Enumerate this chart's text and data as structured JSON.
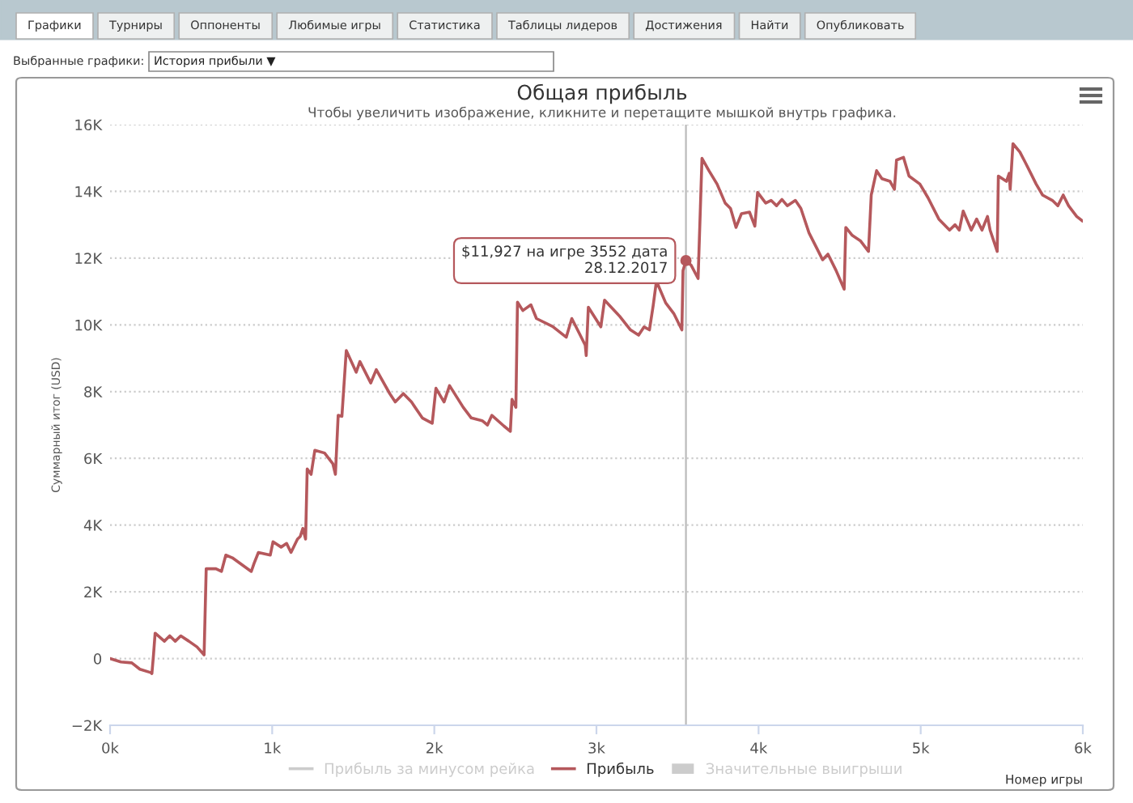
{
  "chart_data": {
    "type": "line",
    "title": "Общая прибыль",
    "subtitle": "Чтобы увеличить изображение, кликните и перетащите мышкой внутрь графика.",
    "xlabel": "Номер игры",
    "ylabel": "Суммарный итог (USD)",
    "xlim": [
      0,
      6000
    ],
    "xticks": [
      {
        "value": 0,
        "label": "0k"
      },
      {
        "value": 1000,
        "label": "1k"
      },
      {
        "value": 2000,
        "label": "2k"
      },
      {
        "value": 3000,
        "label": "3k"
      },
      {
        "value": 4000,
        "label": "4k"
      },
      {
        "value": 5000,
        "label": "5k"
      },
      {
        "value": 6000,
        "label": "6k"
      }
    ],
    "ylim": [
      -2000,
      16000
    ],
    "yticks": [
      {
        "value": -2000,
        "label": "−2K"
      },
      {
        "value": 0,
        "label": "0"
      },
      {
        "value": 2000,
        "label": "2K"
      },
      {
        "value": 4000,
        "label": "4K"
      },
      {
        "value": 6000,
        "label": "6K"
      },
      {
        "value": 8000,
        "label": "8K"
      },
      {
        "value": 10000,
        "label": "10K"
      },
      {
        "value": 12000,
        "label": "12K"
      },
      {
        "value": 14000,
        "label": "14K"
      },
      {
        "value": 16000,
        "label": "16K"
      }
    ],
    "grid": "y",
    "legend": "bottom",
    "marker": "none",
    "line_style": "solid",
    "ref_lines": [
      {
        "axis": "x",
        "value": 3552,
        "color": "#bbbbbb"
      }
    ],
    "series": [
      {
        "name": "Прибыль",
        "color": "#b5585c",
        "x": [
          0,
          67,
          134,
          184,
          251,
          258,
          268,
          278,
          335,
          368,
          402,
          436,
          486,
          536,
          580,
          593,
          653,
          687,
          714,
          754,
          871,
          888,
          915,
          988,
          1005,
          1055,
          1089,
          1116,
          1156,
          1173,
          1189,
          1206,
          1216,
          1240,
          1263,
          1323,
          1374,
          1390,
          1407,
          1430,
          1457,
          1518,
          1541,
          1608,
          1642,
          1725,
          1759,
          1809,
          1859,
          1926,
          1987,
          2010,
          2060,
          2094,
          2178,
          2228,
          2295,
          2328,
          2355,
          2429,
          2469,
          2479,
          2503,
          2513,
          2546,
          2596,
          2630,
          2730,
          2814,
          2848,
          2898,
          2931,
          2937,
          2950,
          3027,
          3050,
          3143,
          3210,
          3260,
          3294,
          3327,
          3350,
          3370,
          3427,
          3477,
          3527,
          3534,
          3552,
          3584,
          3627,
          3651,
          3694,
          3744,
          3794,
          3827,
          3861,
          3894,
          3944,
          3977,
          3994,
          4044,
          4077,
          4111,
          4144,
          4177,
          4227,
          4261,
          4311,
          4361,
          4395,
          4428,
          4478,
          4528,
          4538,
          4578,
          4628,
          4678,
          4695,
          4728,
          4761,
          4811,
          4838,
          4851,
          4894,
          4928,
          4995,
          5045,
          5112,
          5178,
          5212,
          5238,
          5262,
          5312,
          5345,
          5378,
          5412,
          5428,
          5472,
          5479,
          5529,
          5546,
          5552,
          5569,
          5612,
          5646,
          5712,
          5752,
          5812,
          5846,
          5879,
          5912,
          5962,
          5996
        ],
        "values": [
          0,
          -100,
          -130,
          -320,
          -420,
          -450,
          110,
          760,
          520,
          680,
          520,
          680,
          520,
          350,
          110,
          2690,
          2690,
          2610,
          3100,
          3020,
          2610,
          2850,
          3180,
          3100,
          3500,
          3340,
          3450,
          3180,
          3580,
          3660,
          3900,
          3580,
          5680,
          5520,
          6240,
          6160,
          5840,
          5520,
          7290,
          7260,
          9230,
          8580,
          8900,
          8260,
          8660,
          7940,
          7690,
          7940,
          7690,
          7210,
          7050,
          8100,
          7690,
          8180,
          7530,
          7210,
          7130,
          7000,
          7290,
          6970,
          6810,
          7770,
          7530,
          10680,
          10430,
          10600,
          10190,
          9950,
          9630,
          10190,
          9710,
          9390,
          9080,
          10530,
          9940,
          10740,
          10260,
          9850,
          9690,
          9940,
          9850,
          10580,
          11310,
          10660,
          10340,
          9850,
          11630,
          11927,
          11790,
          11390,
          14990,
          14620,
          14220,
          13650,
          13490,
          12920,
          13330,
          13380,
          12960,
          13970,
          13650,
          13730,
          13570,
          13760,
          13570,
          13730,
          13490,
          12760,
          12280,
          11950,
          12120,
          11630,
          11070,
          12920,
          12680,
          12520,
          12200,
          13890,
          14620,
          14380,
          14300,
          14060,
          14940,
          15020,
          14460,
          14220,
          13810,
          13170,
          12840,
          13000,
          12840,
          13410,
          12840,
          13170,
          12840,
          13250,
          12840,
          12200,
          14460,
          14300,
          14540,
          14060,
          15430,
          15180,
          14860,
          14220,
          13890,
          13730,
          13570,
          13890,
          13570,
          13250,
          13120
        ]
      }
    ],
    "annotations": [
      "Графики",
      "Турниры",
      "Оппоненты",
      "Любимые игры",
      "Статистика",
      "Таблицы лидеров",
      "Достижения",
      "Найти",
      "Опубликовать",
      "Выбранные графики:",
      "История прибыли ▼",
      "Прибыль за минусом рейка",
      "Значительные выигрыши",
      {
        "text": "$11,927 на игре 3552 дата\n28.12.2017",
        "x": 3552,
        "y": 11927
      }
    ]
  }
}
